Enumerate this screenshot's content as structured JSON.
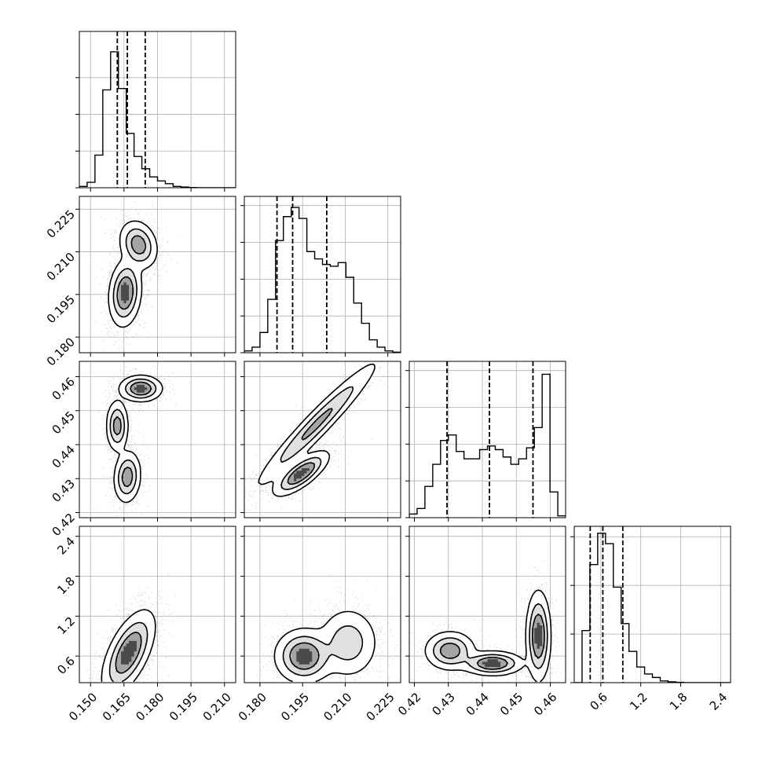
{
  "chart_data": {
    "type": "corner",
    "grid": true,
    "variables": [
      {
        "range": [
          0.145,
          0.215
        ],
        "tick_labels": [
          "0.150",
          "0.165",
          "0.180",
          "0.195",
          "0.210"
        ],
        "hist_quantiles": [
          0.162,
          0.1665,
          0.1745
        ],
        "hist": {
          "edges_start": 0.145,
          "bin_width": 0.0035,
          "counts": [
            1,
            4,
            24,
            72,
            100,
            73,
            40,
            23,
            14,
            8,
            5,
            3,
            1,
            0.5,
            0.2,
            0,
            0,
            0,
            0,
            0
          ],
          "ylim": [
            0,
            115
          ],
          "yticks": [
            0,
            27,
            54,
            81
          ]
        }
      },
      {
        "range": [
          0.1745,
          0.2295
        ],
        "tick_labels": [
          "0.180",
          "0.195",
          "0.210",
          "0.225"
        ],
        "hist_quantiles": [
          0.186,
          0.1915,
          0.2035
        ],
        "hist": {
          "edges_start": 0.1745,
          "bin_width": 0.00275,
          "counts": [
            1,
            3,
            11,
            29,
            61,
            74,
            79,
            73,
            55,
            51,
            48,
            47,
            49,
            41,
            27,
            16,
            7,
            3,
            1,
            0.3
          ],
          "ylim": [
            0,
            85
          ],
          "yticks": [
            0,
            20,
            40,
            60,
            80
          ]
        }
      },
      {
        "range": [
          0.4185,
          0.4645
        ],
        "tick_labels": [
          "0.42",
          "0.43",
          "0.44",
          "0.45",
          "0.46"
        ],
        "hist_quantiles": [
          0.4296,
          0.4421,
          0.4549
        ],
        "hist": {
          "edges_start": 0.4185,
          "bin_width": 0.0023,
          "counts": [
            2,
            5,
            17,
            29,
            42,
            45,
            36,
            32,
            32,
            37,
            39,
            37,
            33,
            29,
            32,
            38,
            49,
            78,
            14,
            1
          ],
          "ylim": [
            0,
            85
          ],
          "yticks": [
            0,
            20,
            40,
            60,
            80
          ]
        }
      },
      {
        "range": [
          0.2,
          2.55
        ],
        "tick_labels": [
          "0.6",
          "1.2",
          "1.8",
          "2.4"
        ],
        "hist_quantiles": [
          0.44,
          0.63,
          0.93
        ],
        "hist": {
          "edges_start": 0.2,
          "bin_width": 0.1175,
          "counts": [
            0,
            30,
            68,
            86,
            80,
            55,
            34,
            18,
            9,
            5,
            3,
            1,
            0.5,
            0.2,
            0,
            0,
            0,
            0,
            0,
            0
          ],
          "ylim": [
            0,
            90
          ],
          "yticks": [
            0,
            28,
            56,
            84
          ]
        }
      }
    ],
    "pairs": [
      {
        "x_var": 0,
        "y_var": 1,
        "clusters": [
          {
            "cx": 0.1655,
            "cy": 0.1955,
            "sx": 0.0032,
            "sy": 0.0052,
            "rho": 0.15,
            "w": 0.6
          },
          {
            "cx": 0.1715,
            "cy": 0.2125,
            "sx": 0.0038,
            "sy": 0.0038,
            "rho": -0.2,
            "w": 0.4
          }
        ]
      },
      {
        "x_var": 0,
        "y_var": 2,
        "clusters": [
          {
            "cx": 0.1665,
            "cy": 0.4305,
            "sx": 0.0027,
            "sy": 0.0034,
            "rho": 0.1,
            "w": 0.36
          },
          {
            "cx": 0.162,
            "cy": 0.4455,
            "sx": 0.0022,
            "sy": 0.0034,
            "rho": 0.0,
            "w": 0.28
          },
          {
            "cx": 0.1725,
            "cy": 0.4565,
            "sx": 0.0042,
            "sy": 0.0017,
            "rho": 0.0,
            "w": 0.36
          }
        ]
      },
      {
        "x_var": 0,
        "y_var": 3,
        "clusters": [
          {
            "cx": 0.167,
            "cy": 0.65,
            "sx": 0.0052,
            "sy": 0.28,
            "rho": 0.6,
            "w": 1.0
          }
        ]
      },
      {
        "x_var": 1,
        "y_var": 2,
        "clusters": [
          {
            "cx": 0.2,
            "cy": 0.446,
            "sx": 0.0097,
            "sy": 0.0084,
            "rho": 0.96,
            "w": 0.64
          },
          {
            "cx": 0.1945,
            "cy": 0.4315,
            "sx": 0.0043,
            "sy": 0.0029,
            "rho": 0.75,
            "w": 0.36
          }
        ]
      },
      {
        "x_var": 1,
        "y_var": 3,
        "clusters": [
          {
            "cx": 0.1955,
            "cy": 0.6,
            "sx": 0.0045,
            "sy": 0.18,
            "rho": 0.0,
            "w": 0.6
          },
          {
            "cx": 0.211,
            "cy": 0.8,
            "sx": 0.0048,
            "sy": 0.24,
            "rho": 0.0,
            "w": 0.4
          }
        ]
      },
      {
        "x_var": 2,
        "y_var": 3,
        "clusters": [
          {
            "cx": 0.4305,
            "cy": 0.68,
            "sx": 0.0033,
            "sy": 0.13,
            "rho": 0.0,
            "w": 0.3
          },
          {
            "cx": 0.443,
            "cy": 0.49,
            "sx": 0.004,
            "sy": 0.08,
            "rho": 0.0,
            "w": 0.28
          },
          {
            "cx": 0.4565,
            "cy": 0.9,
            "sx": 0.0016,
            "sy": 0.3,
            "rho": 0.0,
            "w": 0.42
          }
        ]
      }
    ]
  }
}
